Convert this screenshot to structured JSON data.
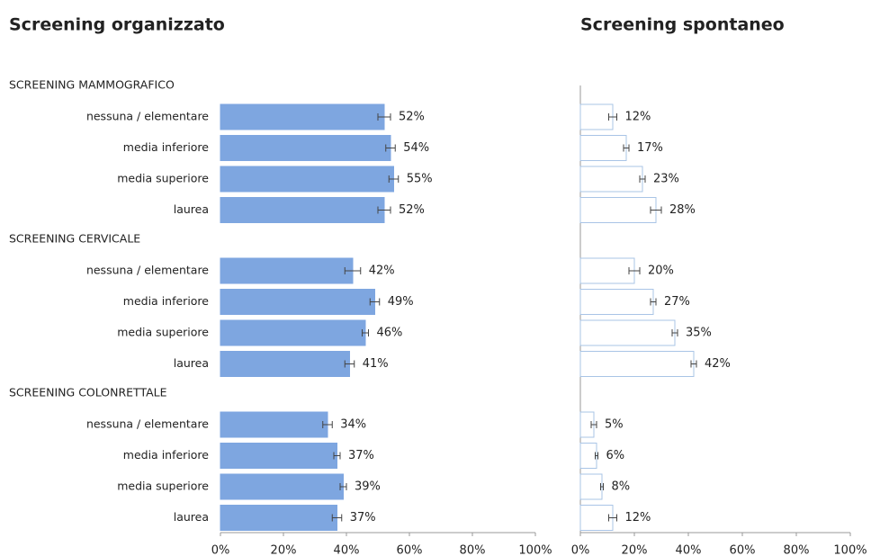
{
  "chart_data": [
    {
      "type": "hbar",
      "title": "Screening organizzato",
      "color": "#7ea6e0",
      "edgecolor": "#7ea6e0",
      "xlim": [
        0,
        100
      ],
      "xticks": [
        {
          "value": 0,
          "label": "0%"
        },
        {
          "value": 20,
          "label": "20%"
        },
        {
          "value": 40,
          "label": "40%"
        },
        {
          "value": 60,
          "label": "60%"
        },
        {
          "value": 80,
          "label": "80%"
        },
        {
          "value": 100,
          "label": "100%"
        }
      ],
      "groups": [
        {
          "name": "SCREENING MAMMOGRAFICO",
          "categories": [
            "nessuna / elementare",
            "media inferiore",
            "media superiore",
            "laurea"
          ],
          "values": [
            52,
            54,
            55,
            52
          ],
          "value_labels": [
            "52%",
            "54%",
            "55%",
            "52%"
          ],
          "errors": [
            2,
            1.5,
            1.5,
            2
          ]
        },
        {
          "name": "SCREENING CERVICALE",
          "categories": [
            "nessuna / elementare",
            "media inferiore",
            "media superiore",
            "laurea"
          ],
          "values": [
            42,
            49,
            46,
            41
          ],
          "value_labels": [
            "42%",
            "49%",
            "46%",
            "41%"
          ],
          "errors": [
            2.5,
            1.5,
            1,
            1.5
          ]
        },
        {
          "name": "SCREENING COLONRETTALE",
          "categories": [
            "nessuna / elementare",
            "media inferiore",
            "media superiore",
            "laurea"
          ],
          "values": [
            34,
            37,
            39,
            37
          ],
          "value_labels": [
            "34%",
            "37%",
            "39%",
            "37%"
          ],
          "errors": [
            1.5,
            1,
            1,
            1.5
          ]
        }
      ]
    },
    {
      "type": "hbar",
      "title": "Screening spontaneo",
      "color": "#ffffff",
      "edgecolor": "#a9c4e6",
      "xlim": [
        0,
        100
      ],
      "xticks": [
        {
          "value": 0,
          "label": "0%"
        },
        {
          "value": 20,
          "label": "20%"
        },
        {
          "value": 40,
          "label": "40%"
        },
        {
          "value": 60,
          "label": "60%"
        },
        {
          "value": 80,
          "label": "80%"
        },
        {
          "value": 100,
          "label": "100%"
        }
      ],
      "groups": [
        {
          "values": [
            12,
            17,
            23,
            28
          ],
          "value_labels": [
            "12%",
            "17%",
            "23%",
            "28%"
          ],
          "errors": [
            1.5,
            1,
            1,
            2
          ]
        },
        {
          "values": [
            20,
            27,
            35,
            42
          ],
          "value_labels": [
            "20%",
            "27%",
            "35%",
            "42%"
          ],
          "errors": [
            2,
            1,
            1,
            1
          ]
        },
        {
          "values": [
            5,
            6,
            8,
            12
          ],
          "value_labels": [
            "5%",
            "6%",
            "8%",
            "12%"
          ],
          "errors": [
            1,
            0.5,
            0.5,
            1.5
          ]
        }
      ]
    }
  ]
}
